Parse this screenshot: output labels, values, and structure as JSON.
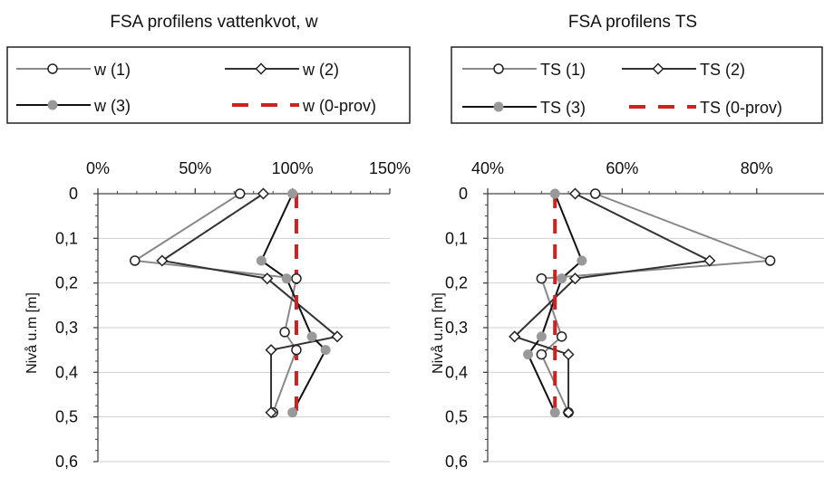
{
  "chart_data": [
    {
      "type": "line",
      "title": "FSA profilens vattenkvot, w",
      "xlabel": "",
      "ylabel": "Nivå u.m [m]",
      "xlim": [
        0,
        1.5
      ],
      "ylim": [
        0,
        0.6
      ],
      "x_ticks": [
        0,
        0.5,
        1.0,
        1.5
      ],
      "x_tick_labels": [
        "0%",
        "50%",
        "100%",
        "150%"
      ],
      "y_ticks": [
        0,
        0.1,
        0.2,
        0.3,
        0.4,
        0.5,
        0.6
      ],
      "y_tick_labels": [
        "0",
        "0,1",
        "0,2",
        "0,3",
        "0,4",
        "0,5",
        "0,6"
      ],
      "x_axis_position": "top",
      "y_inverted": true,
      "grid": "horizontal",
      "legend_position": "top",
      "series": [
        {
          "name": "w (1)",
          "color": "#888888",
          "marker": "circle-open",
          "dash": "solid",
          "points": [
            {
              "x": 0.73,
              "y": 0
            },
            {
              "x": 0.19,
              "y": 0.15
            },
            {
              "x": 1.02,
              "y": 0.19
            },
            {
              "x": 0.96,
              "y": 0.31
            },
            {
              "x": 1.02,
              "y": 0.35
            },
            {
              "x": 0.9,
              "y": 0.49
            }
          ]
        },
        {
          "name": "w (2)",
          "color": "#333333",
          "marker": "diamond-open",
          "dash": "solid",
          "points": [
            {
              "x": 0.85,
              "y": 0
            },
            {
              "x": 0.33,
              "y": 0.15
            },
            {
              "x": 0.87,
              "y": 0.19
            },
            {
              "x": 1.23,
              "y": 0.32
            },
            {
              "x": 0.89,
              "y": 0.35
            },
            {
              "x": 0.89,
              "y": 0.49
            }
          ]
        },
        {
          "name": "w (3)",
          "color": "#111111",
          "marker": "circle-filled-gray",
          "dash": "solid",
          "points": [
            {
              "x": 1.0,
              "y": 0
            },
            {
              "x": 0.84,
              "y": 0.15
            },
            {
              "x": 0.97,
              "y": 0.19
            },
            {
              "x": 1.1,
              "y": 0.32
            },
            {
              "x": 1.17,
              "y": 0.35
            },
            {
              "x": 1.0,
              "y": 0.49
            }
          ]
        },
        {
          "name": "w (0-prov)",
          "color": "#cc2222",
          "marker": "none",
          "dash": "dashed",
          "points": [
            {
              "x": 1.02,
              "y": 0
            },
            {
              "x": 1.02,
              "y": 0.49
            }
          ]
        }
      ]
    },
    {
      "type": "line",
      "title": "FSA profilens TS",
      "xlabel": "",
      "ylabel": "Nivå u.m [m]",
      "xlim": [
        0.4,
        0.9
      ],
      "ylim": [
        0,
        0.6
      ],
      "x_ticks": [
        0.4,
        0.6,
        0.8
      ],
      "x_tick_labels": [
        "40%",
        "60%",
        "80%"
      ],
      "y_ticks": [
        0,
        0.1,
        0.2,
        0.3,
        0.4,
        0.5,
        0.6
      ],
      "y_tick_labels": [
        "0",
        "0,1",
        "0,2",
        "0,3",
        "0,4",
        "0,5",
        "0,6"
      ],
      "x_axis_position": "top",
      "y_inverted": true,
      "grid": "horizontal",
      "legend_position": "top",
      "series": [
        {
          "name": "TS (1)",
          "color": "#888888",
          "marker": "circle-open",
          "dash": "solid",
          "points": [
            {
              "x": 0.56,
              "y": 0
            },
            {
              "x": 0.82,
              "y": 0.15
            },
            {
              "x": 0.48,
              "y": 0.19
            },
            {
              "x": 0.51,
              "y": 0.32
            },
            {
              "x": 0.48,
              "y": 0.36
            },
            {
              "x": 0.52,
              "y": 0.49
            }
          ]
        },
        {
          "name": "TS (2)",
          "color": "#333333",
          "marker": "diamond-open",
          "dash": "solid",
          "points": [
            {
              "x": 0.53,
              "y": 0
            },
            {
              "x": 0.73,
              "y": 0.15
            },
            {
              "x": 0.53,
              "y": 0.19
            },
            {
              "x": 0.44,
              "y": 0.32
            },
            {
              "x": 0.52,
              "y": 0.36
            },
            {
              "x": 0.52,
              "y": 0.49
            }
          ]
        },
        {
          "name": "TS (3)",
          "color": "#111111",
          "marker": "circle-filled-gray",
          "dash": "solid",
          "points": [
            {
              "x": 0.5,
              "y": 0
            },
            {
              "x": 0.54,
              "y": 0.15
            },
            {
              "x": 0.51,
              "y": 0.19
            },
            {
              "x": 0.48,
              "y": 0.32
            },
            {
              "x": 0.46,
              "y": 0.36
            },
            {
              "x": 0.5,
              "y": 0.49
            }
          ]
        },
        {
          "name": "TS (0-prov)",
          "color": "#cc2222",
          "marker": "none",
          "dash": "dashed",
          "points": [
            {
              "x": 0.5,
              "y": 0
            },
            {
              "x": 0.5,
              "y": 0.49
            }
          ]
        }
      ]
    }
  ]
}
